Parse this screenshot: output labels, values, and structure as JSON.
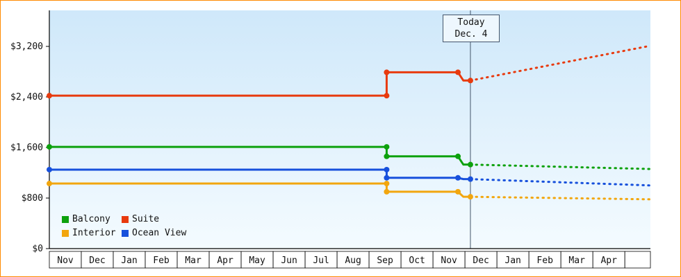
{
  "chart_data": {
    "type": "line",
    "x_categories": [
      "Nov",
      "Dec",
      "Jan",
      "Feb",
      "Mar",
      "Apr",
      "May",
      "Jun",
      "Jul",
      "Aug",
      "Sep",
      "Oct",
      "Nov",
      "Dec",
      "Jan",
      "Feb",
      "Mar",
      "Apr"
    ],
    "xlim": [
      0,
      18.8
    ],
    "ylim": [
      0,
      3770
    ],
    "yticks": [
      {
        "label": "$0",
        "value": 0
      },
      {
        "label": "$800",
        "value": 800
      },
      {
        "label": "$1,600",
        "value": 1600
      },
      {
        "label": "$2,400",
        "value": 2400
      },
      {
        "label": "$3,200",
        "value": 3200
      }
    ],
    "today": {
      "x": 13.17,
      "label_line1": "Today",
      "label_line2": "Dec. 4"
    },
    "series": [
      {
        "name": "Balcony",
        "color": "#0da10d",
        "history": [
          [
            0,
            1610
          ],
          [
            10.55,
            1610
          ],
          [
            10.55,
            1460
          ],
          [
            12.78,
            1460
          ],
          [
            12.95,
            1330
          ],
          [
            13.17,
            1330
          ]
        ],
        "forecast": [
          [
            13.17,
            1330
          ],
          [
            18.8,
            1260
          ]
        ],
        "markers": [
          [
            0,
            1610
          ],
          [
            10.55,
            1610
          ],
          [
            10.55,
            1460
          ],
          [
            12.78,
            1460
          ],
          [
            13.17,
            1330
          ]
        ]
      },
      {
        "name": "Suite",
        "color": "#e83a0e",
        "history": [
          [
            0,
            2420
          ],
          [
            10.55,
            2420
          ],
          [
            10.55,
            2790
          ],
          [
            12.78,
            2790
          ],
          [
            12.95,
            2660
          ],
          [
            13.17,
            2660
          ]
        ],
        "forecast": [
          [
            13.17,
            2660
          ],
          [
            18.8,
            3210
          ]
        ],
        "markers": [
          [
            0,
            2420
          ],
          [
            10.55,
            2420
          ],
          [
            10.55,
            2790
          ],
          [
            12.78,
            2790
          ],
          [
            13.17,
            2660
          ]
        ]
      },
      {
        "name": "Interior",
        "color": "#f2a60e",
        "history": [
          [
            0,
            1030
          ],
          [
            10.55,
            1030
          ],
          [
            10.55,
            900
          ],
          [
            12.78,
            900
          ],
          [
            12.95,
            820
          ],
          [
            13.17,
            820
          ]
        ],
        "forecast": [
          [
            13.17,
            820
          ],
          [
            18.8,
            780
          ]
        ],
        "markers": [
          [
            0,
            1030
          ],
          [
            10.55,
            1030
          ],
          [
            10.55,
            900
          ],
          [
            12.78,
            900
          ],
          [
            13.17,
            820
          ]
        ]
      },
      {
        "name": "Ocean View",
        "color": "#1750dc",
        "history": [
          [
            0,
            1250
          ],
          [
            10.55,
            1250
          ],
          [
            10.55,
            1120
          ],
          [
            12.78,
            1120
          ],
          [
            12.95,
            1100
          ],
          [
            13.17,
            1100
          ]
        ],
        "forecast": [
          [
            13.17,
            1100
          ],
          [
            18.8,
            1000
          ]
        ],
        "markers": [
          [
            0,
            1250
          ],
          [
            10.55,
            1250
          ],
          [
            10.55,
            1120
          ],
          [
            12.78,
            1120
          ],
          [
            13.17,
            1100
          ]
        ]
      }
    ],
    "legend": [
      "Balcony",
      "Suite",
      "Interior",
      "Ocean View"
    ],
    "style": {
      "plot_bg_top": "#cfe8fa",
      "plot_bg_bottom": "#f4fbff",
      "frame_border": "#ff8a00",
      "axis_color": "#000000",
      "today_line_color": "#44556a",
      "text_color": "#111111"
    }
  }
}
